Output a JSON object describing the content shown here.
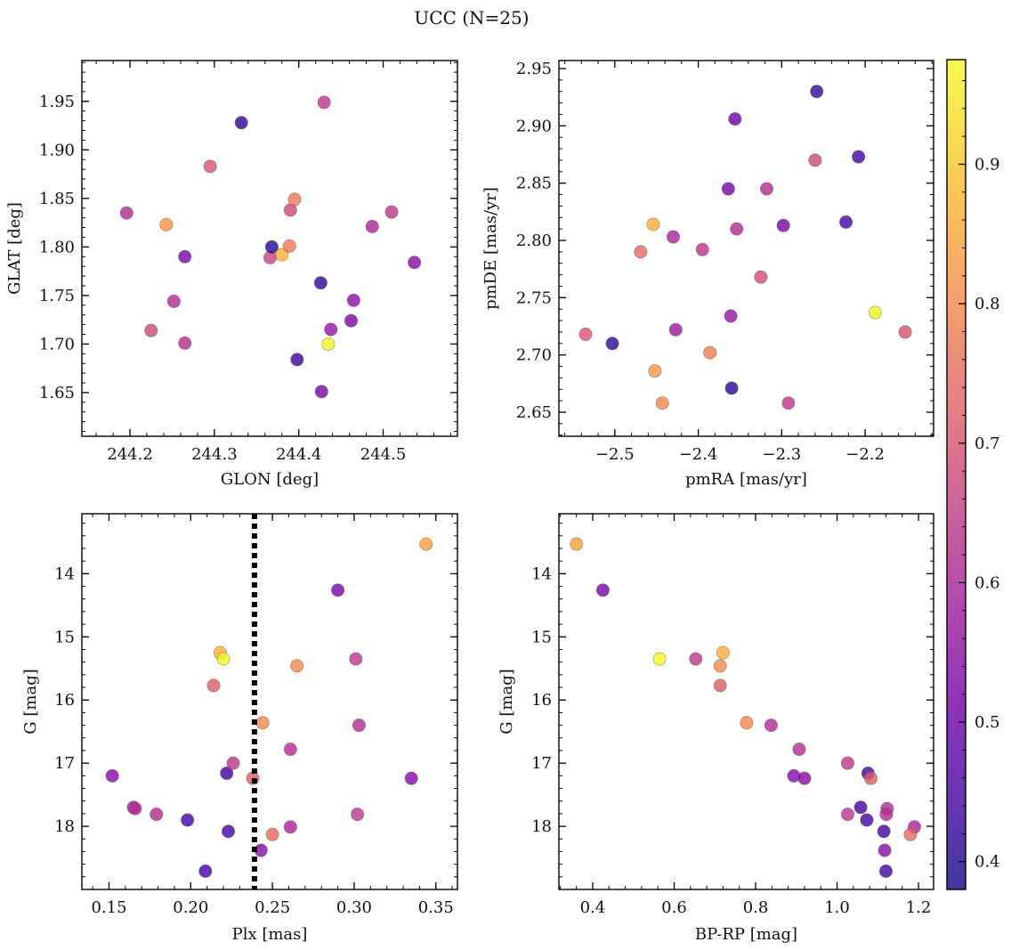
{
  "title": "UCC (N=25)",
  "colormap": {
    "name": "plasma",
    "stops": [
      "#0d0887",
      "#46039f",
      "#7201a8",
      "#9c179e",
      "#bd3786",
      "#d8576b",
      "#ed7953",
      "#fb9f3a",
      "#fdca26",
      "#f0f921"
    ],
    "alpha": 0.8
  },
  "colorbar": {
    "range": [
      0.38,
      0.975
    ],
    "ticks": [
      0.4,
      0.5,
      0.6,
      0.7,
      0.8,
      0.9
    ],
    "tick_labels": [
      "0.4",
      "0.5",
      "0.6",
      "0.7",
      "0.8",
      "0.9"
    ]
  },
  "chart_data": [
    {
      "type": "scatter",
      "xlabel": "GLON [deg]",
      "ylabel": "GLAT [deg]",
      "xlim": [
        244.143,
        244.588
      ],
      "ylim": [
        1.605,
        1.992
      ],
      "y_inverted": false,
      "xticks": [
        244.2,
        244.3,
        244.4,
        244.5
      ],
      "xtick_labels": [
        "244.2",
        "244.3",
        "244.4",
        "244.5"
      ],
      "yticks": [
        1.65,
        1.7,
        1.75,
        1.8,
        1.85,
        1.9,
        1.95
      ],
      "ytick_labels": [
        "1.65",
        "1.70",
        "1.75",
        "1.80",
        "1.85",
        "1.90",
        "1.95"
      ],
      "points": [
        {
          "x": 244.196,
          "y": 1.835,
          "c": 0.62
        },
        {
          "x": 244.243,
          "y": 1.823,
          "c": 0.82
        },
        {
          "x": 244.225,
          "y": 1.714,
          "c": 0.68
        },
        {
          "x": 244.252,
          "y": 1.744,
          "c": 0.62
        },
        {
          "x": 244.265,
          "y": 1.79,
          "c": 0.52
        },
        {
          "x": 244.265,
          "y": 1.701,
          "c": 0.62
        },
        {
          "x": 244.295,
          "y": 1.883,
          "c": 0.7
        },
        {
          "x": 244.332,
          "y": 1.928,
          "c": 0.42
        },
        {
          "x": 244.366,
          "y": 1.789,
          "c": 0.66
        },
        {
          "x": 244.368,
          "y": 1.8,
          "c": 0.41
        },
        {
          "x": 244.38,
          "y": 1.792,
          "c": 0.86
        },
        {
          "x": 244.389,
          "y": 1.801,
          "c": 0.77
        },
        {
          "x": 244.39,
          "y": 1.838,
          "c": 0.68
        },
        {
          "x": 244.395,
          "y": 1.849,
          "c": 0.77
        },
        {
          "x": 244.398,
          "y": 1.684,
          "c": 0.43
        },
        {
          "x": 244.426,
          "y": 1.763,
          "c": 0.42
        },
        {
          "x": 244.427,
          "y": 1.651,
          "c": 0.52
        },
        {
          "x": 244.43,
          "y": 1.949,
          "c": 0.64
        },
        {
          "x": 244.435,
          "y": 1.7,
          "c": 0.97
        },
        {
          "x": 244.438,
          "y": 1.715,
          "c": 0.56
        },
        {
          "x": 244.462,
          "y": 1.724,
          "c": 0.53
        },
        {
          "x": 244.465,
          "y": 1.745,
          "c": 0.55
        },
        {
          "x": 244.487,
          "y": 1.821,
          "c": 0.6
        },
        {
          "x": 244.51,
          "y": 1.836,
          "c": 0.64
        },
        {
          "x": 244.537,
          "y": 1.784,
          "c": 0.54
        }
      ]
    },
    {
      "type": "scatter",
      "xlabel": "pmRA [mas/yr]",
      "ylabel": "pmDE [mas/yr]",
      "xlim": [
        -2.567,
        -2.118
      ],
      "ylim": [
        2.629,
        2.957
      ],
      "y_inverted": false,
      "xticks": [
        -2.5,
        -2.4,
        -2.3,
        -2.2
      ],
      "xtick_labels": [
        "−2.5",
        "−2.4",
        "−2.3",
        "−2.2"
      ],
      "yticks": [
        2.65,
        2.7,
        2.75,
        2.8,
        2.85,
        2.9,
        2.95
      ],
      "ytick_labels": [
        "2.65",
        "2.70",
        "2.75",
        "2.80",
        "2.85",
        "2.90",
        "2.95"
      ],
      "points": [
        {
          "x": -2.535,
          "y": 2.718,
          "c": 0.7
        },
        {
          "x": -2.503,
          "y": 2.71,
          "c": 0.42
        },
        {
          "x": -2.469,
          "y": 2.79,
          "c": 0.74
        },
        {
          "x": -2.454,
          "y": 2.814,
          "c": 0.86
        },
        {
          "x": -2.452,
          "y": 2.686,
          "c": 0.82
        },
        {
          "x": -2.443,
          "y": 2.658,
          "c": 0.8
        },
        {
          "x": -2.43,
          "y": 2.803,
          "c": 0.6
        },
        {
          "x": -2.427,
          "y": 2.722,
          "c": 0.58
        },
        {
          "x": -2.395,
          "y": 2.792,
          "c": 0.64
        },
        {
          "x": -2.386,
          "y": 2.702,
          "c": 0.78
        },
        {
          "x": -2.364,
          "y": 2.845,
          "c": 0.52
        },
        {
          "x": -2.361,
          "y": 2.734,
          "c": 0.56
        },
        {
          "x": -2.36,
          "y": 2.671,
          "c": 0.41
        },
        {
          "x": -2.356,
          "y": 2.906,
          "c": 0.5
        },
        {
          "x": -2.354,
          "y": 2.81,
          "c": 0.62
        },
        {
          "x": -2.325,
          "y": 2.768,
          "c": 0.68
        },
        {
          "x": -2.318,
          "y": 2.845,
          "c": 0.62
        },
        {
          "x": -2.298,
          "y": 2.813,
          "c": 0.52
        },
        {
          "x": -2.292,
          "y": 2.658,
          "c": 0.64
        },
        {
          "x": -2.26,
          "y": 2.87,
          "c": 0.68
        },
        {
          "x": -2.258,
          "y": 2.93,
          "c": 0.42
        },
        {
          "x": -2.223,
          "y": 2.816,
          "c": 0.44
        },
        {
          "x": -2.208,
          "y": 2.873,
          "c": 0.44
        },
        {
          "x": -2.188,
          "y": 2.737,
          "c": 0.97
        },
        {
          "x": -2.152,
          "y": 2.72,
          "c": 0.7
        }
      ]
    },
    {
      "type": "scatter",
      "xlabel": "Plx [mas]",
      "ylabel": "G [mag]",
      "xlim": [
        0.1334,
        0.3632
      ],
      "ylim": [
        13.05,
        19.0
      ],
      "y_inverted": true,
      "xticks": [
        0.15,
        0.2,
        0.25,
        0.3,
        0.35
      ],
      "xtick_labels": [
        "0.15",
        "0.20",
        "0.25",
        "0.30",
        "0.35"
      ],
      "yticks": [
        14,
        15,
        16,
        17,
        18
      ],
      "ytick_labels": [
        "14",
        "15",
        "16",
        "17",
        "18"
      ],
      "vline": {
        "x": 0.239,
        "style": "dotted",
        "color": "#000000"
      },
      "points": [
        {
          "x": 0.152,
          "y": 17.2,
          "c": 0.54
        },
        {
          "x": 0.165,
          "y": 17.7,
          "c": 0.6
        },
        {
          "x": 0.166,
          "y": 17.72,
          "c": 0.62
        },
        {
          "x": 0.179,
          "y": 17.81,
          "c": 0.62
        },
        {
          "x": 0.198,
          "y": 17.9,
          "c": 0.44
        },
        {
          "x": 0.209,
          "y": 18.71,
          "c": 0.44
        },
        {
          "x": 0.214,
          "y": 15.77,
          "c": 0.72
        },
        {
          "x": 0.218,
          "y": 15.25,
          "c": 0.86
        },
        {
          "x": 0.22,
          "y": 15.35,
          "c": 0.97
        },
        {
          "x": 0.222,
          "y": 17.16,
          "c": 0.44
        },
        {
          "x": 0.223,
          "y": 18.08,
          "c": 0.44
        },
        {
          "x": 0.226,
          "y": 17.0,
          "c": 0.64
        },
        {
          "x": 0.238,
          "y": 17.24,
          "c": 0.72
        },
        {
          "x": 0.243,
          "y": 18.38,
          "c": 0.54
        },
        {
          "x": 0.244,
          "y": 16.36,
          "c": 0.8
        },
        {
          "x": 0.25,
          "y": 18.13,
          "c": 0.74
        },
        {
          "x": 0.261,
          "y": 16.78,
          "c": 0.62
        },
        {
          "x": 0.261,
          "y": 18.01,
          "c": 0.6
        },
        {
          "x": 0.265,
          "y": 15.46,
          "c": 0.8
        },
        {
          "x": 0.29,
          "y": 14.26,
          "c": 0.52
        },
        {
          "x": 0.301,
          "y": 15.35,
          "c": 0.64
        },
        {
          "x": 0.302,
          "y": 17.81,
          "c": 0.64
        },
        {
          "x": 0.303,
          "y": 16.4,
          "c": 0.62
        },
        {
          "x": 0.335,
          "y": 17.24,
          "c": 0.54
        },
        {
          "x": 0.344,
          "y": 13.53,
          "c": 0.84
        }
      ]
    },
    {
      "type": "scatter",
      "xlabel": "BP-RP [mag]",
      "ylabel": "G [mag]",
      "xlim": [
        0.317,
        1.237
      ],
      "ylim": [
        13.05,
        19.0
      ],
      "y_inverted": true,
      "xticks": [
        0.4,
        0.6,
        0.8,
        1.0,
        1.2
      ],
      "xtick_labels": [
        "0.4",
        "0.6",
        "0.8",
        "1.0",
        "1.2"
      ],
      "yticks": [
        14,
        15,
        16,
        17,
        18
      ],
      "ytick_labels": [
        "14",
        "15",
        "16",
        "17",
        "18"
      ],
      "points": [
        {
          "x": 0.36,
          "y": 13.53,
          "c": 0.84
        },
        {
          "x": 0.425,
          "y": 14.26,
          "c": 0.52
        },
        {
          "x": 0.564,
          "y": 15.35,
          "c": 0.97
        },
        {
          "x": 0.653,
          "y": 15.35,
          "c": 0.64
        },
        {
          "x": 0.72,
          "y": 15.25,
          "c": 0.86
        },
        {
          "x": 0.713,
          "y": 15.46,
          "c": 0.8
        },
        {
          "x": 0.713,
          "y": 15.77,
          "c": 0.72
        },
        {
          "x": 0.778,
          "y": 16.36,
          "c": 0.8
        },
        {
          "x": 0.838,
          "y": 16.4,
          "c": 0.62
        },
        {
          "x": 0.907,
          "y": 16.78,
          "c": 0.62
        },
        {
          "x": 0.894,
          "y": 17.2,
          "c": 0.54
        },
        {
          "x": 0.92,
          "y": 17.24,
          "c": 0.54
        },
        {
          "x": 1.026,
          "y": 17.0,
          "c": 0.64
        },
        {
          "x": 1.026,
          "y": 17.81,
          "c": 0.64
        },
        {
          "x": 1.076,
          "y": 17.16,
          "c": 0.44
        },
        {
          "x": 1.083,
          "y": 17.24,
          "c": 0.72
        },
        {
          "x": 1.058,
          "y": 17.7,
          "c": 0.44
        },
        {
          "x": 1.073,
          "y": 17.9,
          "c": 0.44
        },
        {
          "x": 1.123,
          "y": 17.72,
          "c": 0.62
        },
        {
          "x": 1.121,
          "y": 17.81,
          "c": 0.62
        },
        {
          "x": 1.115,
          "y": 18.08,
          "c": 0.44
        },
        {
          "x": 1.117,
          "y": 18.38,
          "c": 0.54
        },
        {
          "x": 1.12,
          "y": 18.71,
          "c": 0.44
        },
        {
          "x": 1.19,
          "y": 18.01,
          "c": 0.6
        },
        {
          "x": 1.18,
          "y": 18.13,
          "c": 0.74
        }
      ]
    }
  ]
}
